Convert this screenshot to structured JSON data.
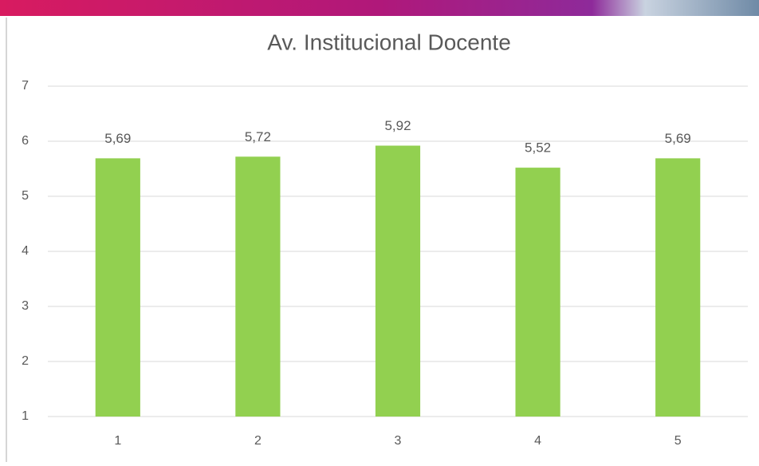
{
  "chart_data": {
    "type": "bar",
    "title": "Av. Institucional Docente",
    "categories": [
      "1",
      "2",
      "3",
      "4",
      "5"
    ],
    "values": [
      5.69,
      5.72,
      5.92,
      5.52,
      5.69
    ],
    "value_labels": [
      "5,69",
      "5,72",
      "5,92",
      "5,52",
      "5,69"
    ],
    "color": "#92d050",
    "ylim": [
      1,
      7
    ],
    "yticks": [
      1,
      2,
      3,
      4,
      5,
      6,
      7
    ],
    "grid": true
  }
}
